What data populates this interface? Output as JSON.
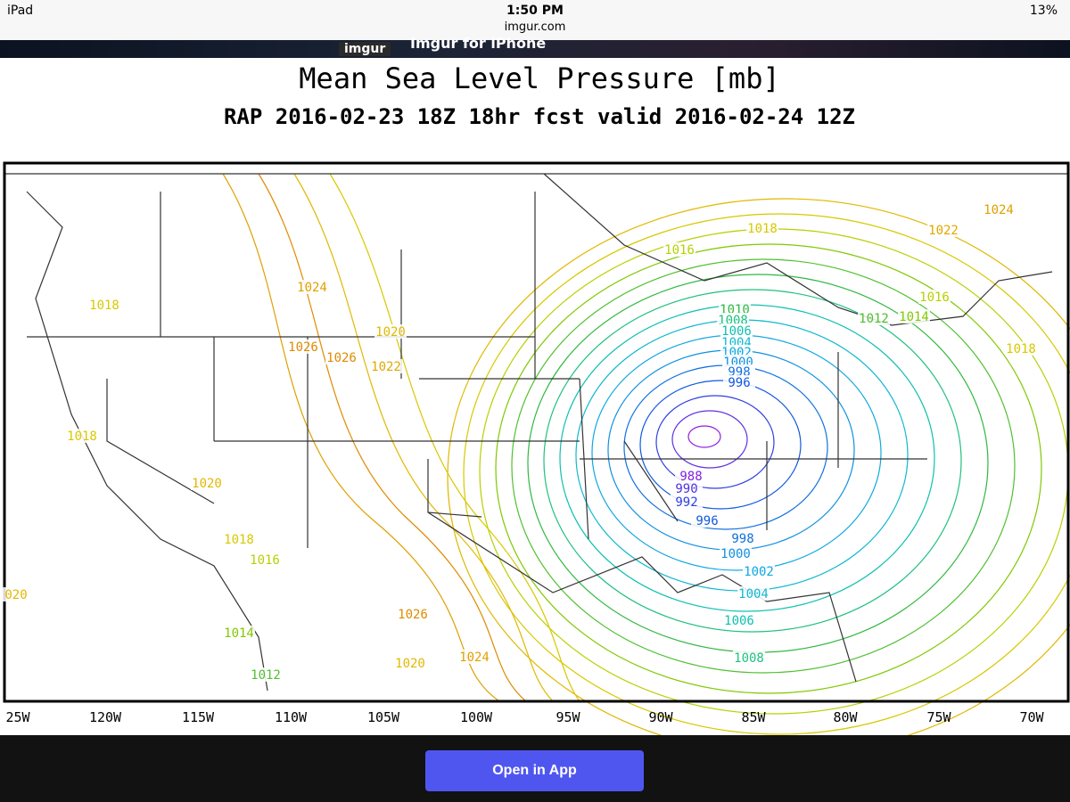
{
  "status_bar": {
    "device": "iPad",
    "time": "1:50 PM",
    "url": "imgur.com",
    "battery": "13%"
  },
  "banner": {
    "logo": "imgur",
    "text": "Imgur for iPhone"
  },
  "map": {
    "title": "Mean Sea Level Pressure [mb]",
    "subtitle": "RAP 2016-02-23 18Z 18hr fcst valid 2016-02-24 12Z",
    "longitude_labels": [
      "25W",
      "120W",
      "115W",
      "110W",
      "105W",
      "100W",
      "95W",
      "90W",
      "85W",
      "80W",
      "75W",
      "70W"
    ],
    "contour_labels": [
      {
        "text": "1018",
        "color": "#d8c800"
      },
      {
        "text": "1024",
        "color": "#e0a000"
      },
      {
        "text": "1026",
        "color": "#e08a00"
      },
      {
        "text": "1026",
        "color": "#e08a00"
      },
      {
        "text": "1020",
        "color": "#e0b800"
      },
      {
        "text": "1022",
        "color": "#e0a800"
      },
      {
        "text": "1018",
        "color": "#d8c800"
      },
      {
        "text": "1020",
        "color": "#e0b800"
      },
      {
        "text": "1018",
        "color": "#d8c800"
      },
      {
        "text": "1016",
        "color": "#b8d000"
      },
      {
        "text": "1014",
        "color": "#80c800"
      },
      {
        "text": "1012",
        "color": "#50c030"
      },
      {
        "text": "1026",
        "color": "#e08a00"
      },
      {
        "text": "1020",
        "color": "#e0b800"
      },
      {
        "text": "1024",
        "color": "#e0a000"
      },
      {
        "text": "020",
        "color": "#e0b800"
      },
      {
        "text": "1016",
        "color": "#b8d000"
      },
      {
        "text": "1018",
        "color": "#d8c800"
      },
      {
        "text": "1024",
        "color": "#e0a000"
      },
      {
        "text": "1022",
        "color": "#e0a800"
      },
      {
        "text": "1016",
        "color": "#b8d000"
      },
      {
        "text": "1014",
        "color": "#80c800"
      },
      {
        "text": "1012",
        "color": "#50c030"
      },
      {
        "text": "1018",
        "color": "#d8c800"
      },
      {
        "text": "1010",
        "color": "#30b840"
      },
      {
        "text": "1008",
        "color": "#20c080"
      },
      {
        "text": "1006",
        "color": "#10c0b0"
      },
      {
        "text": "1004",
        "color": "#10b8d0"
      },
      {
        "text": "1002",
        "color": "#10a8e0"
      },
      {
        "text": "1000",
        "color": "#1090e0"
      },
      {
        "text": "998",
        "color": "#1070e0"
      },
      {
        "text": "996",
        "color": "#1058e0"
      },
      {
        "text": "988",
        "color": "#8020e0"
      },
      {
        "text": "990",
        "color": "#5030e0"
      },
      {
        "text": "992",
        "color": "#3040e0"
      },
      {
        "text": "996",
        "color": "#1058e0"
      },
      {
        "text": "998",
        "color": "#1070e0"
      },
      {
        "text": "1000",
        "color": "#1090e0"
      },
      {
        "text": "1002",
        "color": "#10a8e0"
      },
      {
        "text": "1004",
        "color": "#10b8d0"
      },
      {
        "text": "1006",
        "color": "#10c0b0"
      },
      {
        "text": "1008",
        "color": "#20c080"
      }
    ]
  },
  "footer": {
    "button": "Open in App"
  }
}
